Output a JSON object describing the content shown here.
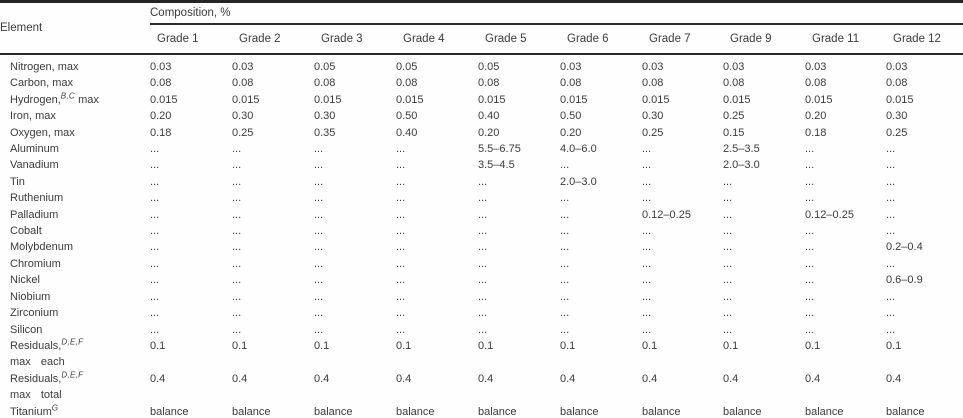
{
  "table": {
    "spanner": "Composition, %",
    "element_header": "Element",
    "columns": [
      "Grade 1",
      "Grade 2",
      "Grade 3",
      "Grade 4",
      "Grade 5",
      "Grade 6",
      "Grade 7",
      "Grade 9",
      "Grade 11",
      "Grade 12"
    ],
    "rows": [
      {
        "label": "Nitrogen, max",
        "values": [
          "0.03",
          "0.03",
          "0.05",
          "0.05",
          "0.05",
          "0.03",
          "0.03",
          "0.03",
          "0.03",
          "0.03"
        ]
      },
      {
        "label": "Carbon, max",
        "values": [
          "0.08",
          "0.08",
          "0.08",
          "0.08",
          "0.08",
          "0.08",
          "0.08",
          "0.08",
          "0.08",
          "0.08"
        ]
      },
      {
        "label": "Hydrogen,",
        "sup": "B,C",
        "label_after": " max",
        "values": [
          "0.015",
          "0.015",
          "0.015",
          "0.015",
          "0.015",
          "0.015",
          "0.015",
          "0.015",
          "0.015",
          "0.015"
        ]
      },
      {
        "label": "Iron, max",
        "values": [
          "0.20",
          "0.30",
          "0.30",
          "0.50",
          "0.40",
          "0.50",
          "0.30",
          "0.25",
          "0.20",
          "0.30"
        ]
      },
      {
        "label": "Oxygen, max",
        "values": [
          "0.18",
          "0.25",
          "0.35",
          "0.40",
          "0.20",
          "0.20",
          "0.25",
          "0.15",
          "0.18",
          "0.25"
        ]
      },
      {
        "label": "Aluminum",
        "values": [
          "...",
          "...",
          "...",
          "...",
          "5.5–6.75",
          "4.0–6.0",
          "...",
          "2.5–3.5",
          "...",
          "..."
        ]
      },
      {
        "label": "Vanadium",
        "values": [
          "...",
          "...",
          "...",
          "...",
          "3.5–4.5",
          "...",
          "...",
          "2.0–3.0",
          "...",
          "..."
        ]
      },
      {
        "label": "Tin",
        "values": [
          "...",
          "...",
          "...",
          "...",
          "...",
          "2.0–3.0",
          "...",
          "...",
          "...",
          "..."
        ]
      },
      {
        "label": "Ruthenium",
        "values": [
          "...",
          "...",
          "...",
          "...",
          "...",
          "...",
          "...",
          "...",
          "...",
          "..."
        ]
      },
      {
        "label": "Palladium",
        "values": [
          "...",
          "...",
          "...",
          "...",
          "...",
          "...",
          "0.12–0.25",
          "...",
          "0.12–0.25",
          "..."
        ]
      },
      {
        "label": "Cobalt",
        "values": [
          "...",
          "...",
          "...",
          "...",
          "...",
          "...",
          "...",
          "...",
          "...",
          "..."
        ]
      },
      {
        "label": "Molybdenum",
        "values": [
          "...",
          "...",
          "...",
          "...",
          "...",
          "...",
          "...",
          "...",
          "...",
          "0.2–0.4"
        ]
      },
      {
        "label": "Chromium",
        "values": [
          "...",
          "...",
          "...",
          "...",
          "...",
          "...",
          "...",
          "...",
          "...",
          "..."
        ]
      },
      {
        "label": "Nickel",
        "values": [
          "...",
          "...",
          "...",
          "...",
          "...",
          "...",
          "...",
          "...",
          "...",
          "0.6–0.9"
        ]
      },
      {
        "label": "Niobium",
        "values": [
          "...",
          "...",
          "...",
          "...",
          "...",
          "...",
          "...",
          "...",
          "...",
          "..."
        ]
      },
      {
        "label": "Zirconium",
        "values": [
          "...",
          "...",
          "...",
          "...",
          "...",
          "...",
          "...",
          "...",
          "...",
          "..."
        ]
      },
      {
        "label": "Silicon",
        "values": [
          "...",
          "...",
          "...",
          "...",
          "...",
          "...",
          "...",
          "...",
          "...",
          "..."
        ]
      },
      {
        "label": "Residuals,",
        "sup": "D,E,F",
        "line2": "max each",
        "values": [
          "0.1",
          "0.1",
          "0.1",
          "0.1",
          "0.1",
          "0.1",
          "0.1",
          "0.1",
          "0.1",
          "0.1"
        ]
      },
      {
        "label": "Residuals,",
        "sup": "D,E,F",
        "line2": "max total",
        "values": [
          "0.4",
          "0.4",
          "0.4",
          "0.4",
          "0.4",
          "0.4",
          "0.4",
          "0.4",
          "0.4",
          "0.4"
        ]
      },
      {
        "label": "Titanium",
        "sup": "G",
        "values": [
          "balance",
          "balance",
          "balance",
          "balance",
          "balance",
          "balance",
          "balance",
          "balance",
          "balance",
          "balance"
        ]
      }
    ],
    "colors": {
      "text": "#3c3c3c",
      "rule": "#262626",
      "background": "#fefefe"
    }
  }
}
